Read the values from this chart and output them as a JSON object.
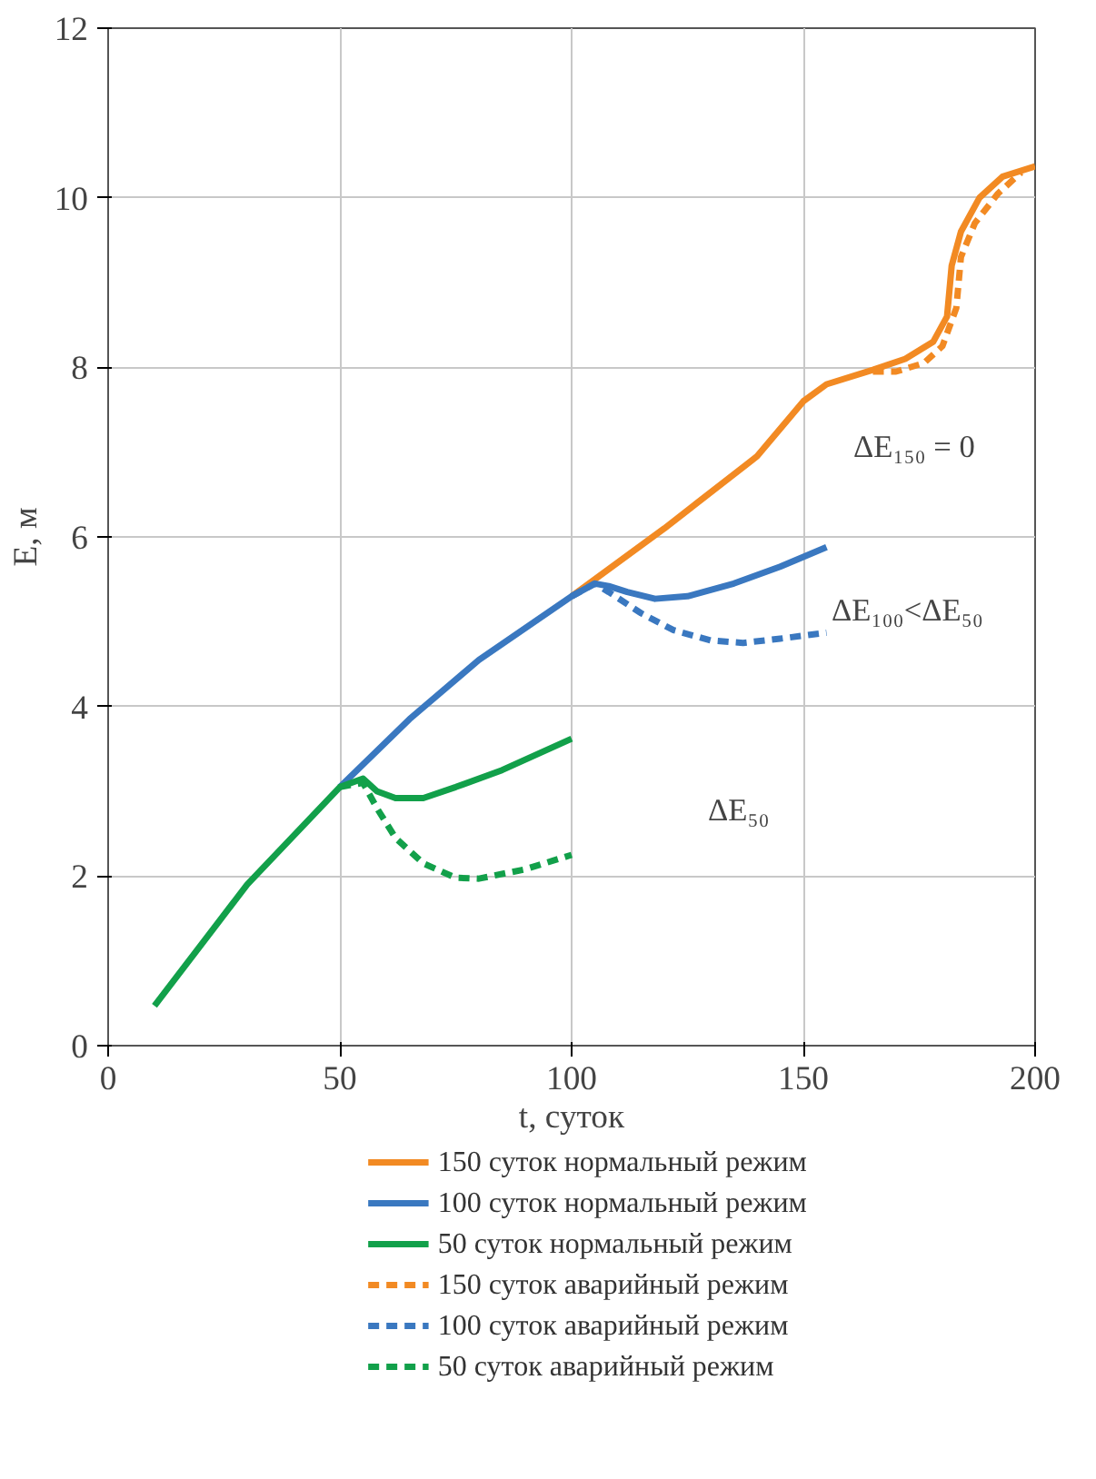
{
  "chart_data": {
    "type": "line",
    "xlabel": "t, суток",
    "ylabel": "E, м",
    "xlim": [
      0,
      200
    ],
    "ylim": [
      0,
      12
    ],
    "xticks": [
      0,
      50,
      100,
      150,
      200
    ],
    "yticks": [
      0,
      2,
      4,
      6,
      8,
      10,
      12
    ],
    "grid": true,
    "legend": "bottom",
    "marker": "none",
    "series": [
      {
        "name": "150 суток нормальный режим",
        "color": "#f28a23",
        "line_style": "solid",
        "x": [
          100,
          120,
          140,
          150,
          155,
          165,
          172,
          178,
          181,
          182,
          184,
          188,
          193,
          200
        ],
        "values": [
          5.3,
          6.1,
          6.95,
          7.6,
          7.8,
          7.97,
          8.1,
          8.3,
          8.6,
          9.2,
          9.6,
          10.0,
          10.25,
          10.37
        ]
      },
      {
        "name": "100 суток нормальный режим",
        "color": "#3a78c0",
        "line_style": "solid",
        "x": [
          50,
          65,
          80,
          100,
          105,
          108,
          112,
          118,
          125,
          135,
          145,
          155
        ],
        "values": [
          3.05,
          3.85,
          4.55,
          5.3,
          5.45,
          5.42,
          5.35,
          5.27,
          5.3,
          5.45,
          5.65,
          5.88
        ]
      },
      {
        "name": "50 суток нормальный режим",
        "color": "#12a04a",
        "line_style": "solid",
        "x": [
          10,
          30,
          50,
          55,
          58,
          62,
          68,
          75,
          85,
          100
        ],
        "values": [
          0.47,
          1.9,
          3.05,
          3.15,
          3.0,
          2.92,
          2.92,
          3.05,
          3.25,
          3.62
        ]
      },
      {
        "name": "150 суток аварийный режим",
        "color": "#f28a23",
        "line_style": "dashed",
        "x": [
          165,
          170,
          176,
          180,
          183,
          184,
          187,
          192,
          197
        ],
        "values": [
          7.95,
          7.95,
          8.05,
          8.25,
          8.7,
          9.3,
          9.7,
          10.05,
          10.3
        ]
      },
      {
        "name": "100 суток аварийный режим",
        "color": "#3a78c0",
        "line_style": "dashed",
        "x": [
          100,
          105,
          108,
          115,
          122,
          130,
          137,
          145,
          155
        ],
        "values": [
          5.3,
          5.45,
          5.35,
          5.1,
          4.9,
          4.78,
          4.75,
          4.8,
          4.87
        ]
      },
      {
        "name": "50 суток аварийный режим",
        "color": "#12a04a",
        "line_style": "dashed",
        "x": [
          50,
          55,
          58,
          62,
          68,
          75,
          80,
          90,
          100
        ],
        "values": [
          3.05,
          3.1,
          2.8,
          2.45,
          2.15,
          1.98,
          1.97,
          2.08,
          2.25
        ]
      }
    ],
    "annotations": [
      "ΔE₁₅₀ = 0",
      "ΔE₁₀₀<ΔE₅₀",
      "ΔE₅₀"
    ]
  }
}
